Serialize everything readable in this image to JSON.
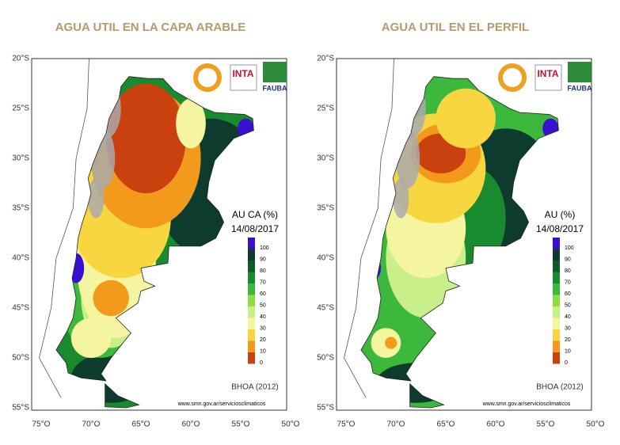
{
  "panels": [
    {
      "title": "AGUA UTIL EN LA CAPA ARABLE",
      "legend_title": "AU CA (%)",
      "date": "14/08/2017"
    },
    {
      "title": "AGUA UTIL EN EL PERFIL",
      "legend_title": "AU (%)",
      "date": "14/08/2017"
    }
  ],
  "legend_labels": [
    100,
    90,
    80,
    70,
    60,
    50,
    40,
    30,
    20,
    10,
    0
  ],
  "latitudes": [
    "20°S",
    "25°S",
    "30°S",
    "35°S",
    "40°S",
    "45°S",
    "50°S",
    "55°S"
  ],
  "longitudes": [
    "75°O",
    "70°O",
    "65°O",
    "60°O",
    "55°O",
    "50°O"
  ],
  "logos": {
    "inta": "INTA",
    "fauba": "FAUBA"
  },
  "source": "BHOA (2012)",
  "url": "www.smn.gov.ar/serviciosclimaticos"
}
